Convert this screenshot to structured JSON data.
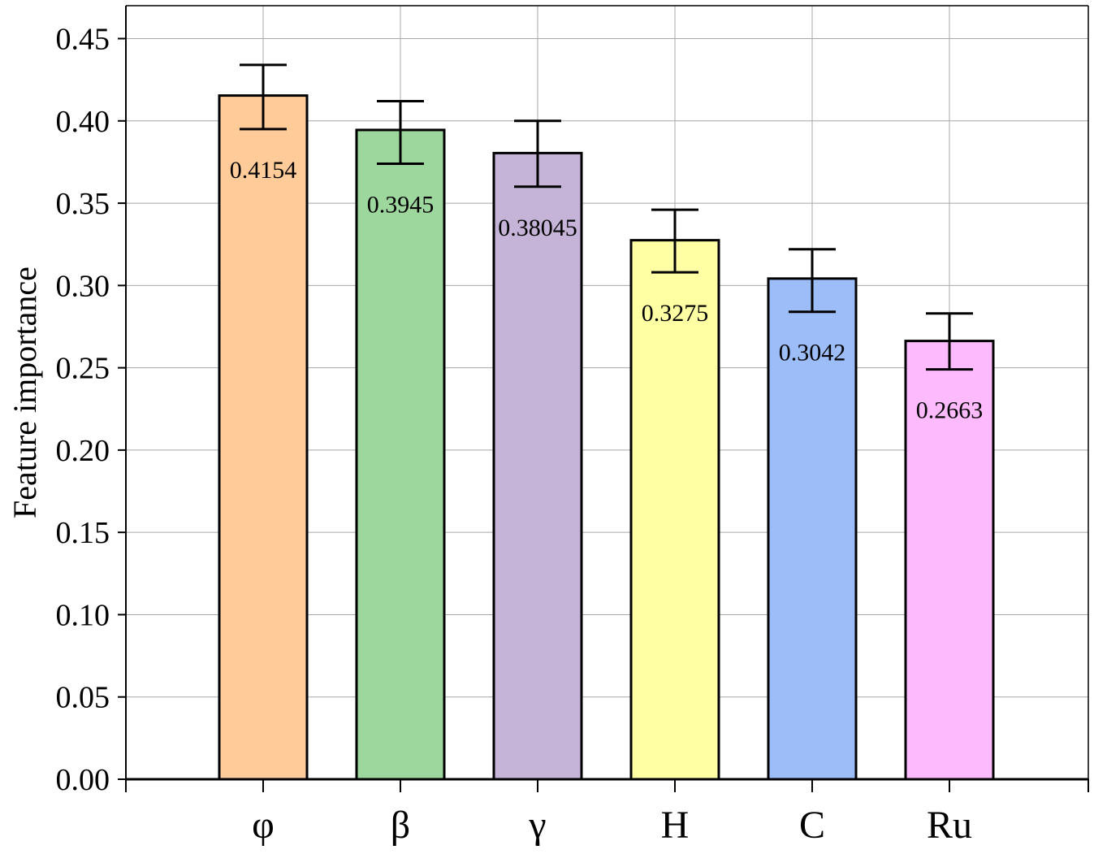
{
  "chart_data": {
    "type": "bar",
    "title": "",
    "xlabel": "",
    "ylabel": "Feature importance",
    "categories": [
      "φ",
      "β",
      "γ",
      "H",
      "C",
      "Ru"
    ],
    "values": [
      0.4154,
      0.3945,
      0.38045,
      0.3275,
      0.3042,
      0.2663
    ],
    "data_labels": [
      "0.4154",
      "0.3945",
      "0.38045",
      "0.3275",
      "0.3042",
      "0.2663"
    ],
    "error_upper": [
      0.434,
      0.412,
      0.4,
      0.346,
      0.322,
      0.283
    ],
    "error_lower": [
      0.395,
      0.374,
      0.36,
      0.308,
      0.284,
      0.249
    ],
    "colors": [
      "#FFCC99",
      "#9DD79D",
      "#C6B4D8",
      "#FFFFA3",
      "#9DBDF8",
      "#FDBBFD"
    ],
    "ylim": [
      0,
      0.47
    ],
    "yticks": [
      "0.00",
      "0.05",
      "0.10",
      "0.15",
      "0.20",
      "0.25",
      "0.30",
      "0.35",
      "0.40",
      "0.45"
    ],
    "grid": true,
    "legend": "none"
  }
}
